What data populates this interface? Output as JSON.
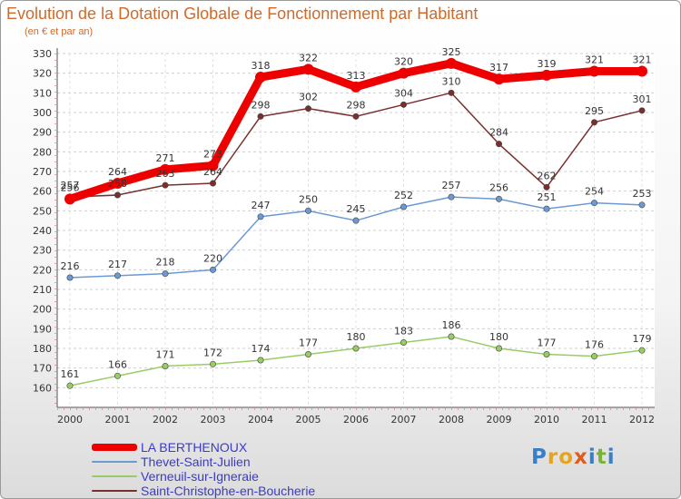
{
  "chart_data": {
    "type": "line",
    "title": "Evolution de la Dotation Globale de Fonctionnement par Habitant",
    "subtitle": "(en € et par an)",
    "xlabel": "",
    "ylabel": "",
    "x": [
      "2000",
      "2001",
      "2002",
      "2003",
      "2004",
      "2005",
      "2006",
      "2007",
      "2008",
      "2009",
      "2010",
      "2011",
      "2012"
    ],
    "ylim": [
      150,
      330
    ],
    "yticks": [
      160,
      170,
      180,
      190,
      200,
      210,
      220,
      230,
      240,
      250,
      260,
      270,
      280,
      290,
      300,
      310,
      320,
      330
    ],
    "grid": true,
    "legend_position": "bottom-left",
    "series": [
      {
        "name": "LA BERTHENOUX",
        "color": "#ee0000",
        "values": [
          256,
          264,
          271,
          273,
          318,
          322,
          313,
          320,
          325,
          317,
          319,
          321,
          321
        ]
      },
      {
        "name": "Thevet-Saint-Julien",
        "color": "#6b9ad2",
        "values": [
          216,
          217,
          218,
          220,
          247,
          250,
          245,
          252,
          257,
          256,
          251,
          254,
          253
        ]
      },
      {
        "name": "Verneuil-sur-Igneraie",
        "color": "#99cc66",
        "values": [
          161,
          166,
          171,
          172,
          174,
          177,
          180,
          183,
          186,
          180,
          177,
          176,
          179
        ]
      },
      {
        "name": "Saint-Christophe-en-Boucherie",
        "color": "#7a2f2f",
        "values": [
          257,
          258,
          263,
          264,
          298,
          302,
          298,
          304,
          310,
          284,
          262,
          295,
          301
        ]
      }
    ]
  },
  "brand": {
    "text": "Proxiti",
    "letters": [
      "P",
      "r",
      "o",
      "x",
      "i",
      "t",
      "i"
    ],
    "colors": [
      "#3a7fc4",
      "#e7a31d",
      "#e7a31d",
      "#e05a1a",
      "#3a7fc4",
      "#7ab33a",
      "#3a7fc4"
    ]
  }
}
